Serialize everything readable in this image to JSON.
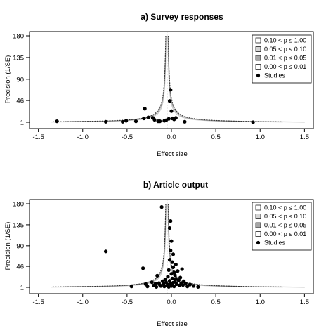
{
  "chart_data": [
    {
      "type": "scatter",
      "title": "a) Survey responses",
      "xlabel": "Effect size",
      "ylabel": "Precision (1/SE)",
      "xlim": [
        -1.6,
        1.6
      ],
      "ylim": [
        1,
        180
      ],
      "xticks": [
        "-1.5",
        "-1.0",
        "-0.5",
        "0.0",
        "0.5",
        "1.0",
        "1.5"
      ],
      "xtick_values": [
        -1.5,
        -1.0,
        -0.5,
        0.0,
        0.5,
        1.0,
        1.5
      ],
      "yticks": [
        "1",
        "46",
        "90",
        "135",
        "180"
      ],
      "ytick_values": [
        1,
        46,
        90,
        135,
        180
      ],
      "funnel_center": -0.05,
      "legend": {
        "position": "top-right",
        "entries": [
          "0.10 < p ≤ 1.00",
          "0.05 < p ≤ 0.10",
          "0.01 < p ≤ 0.05",
          "0.00 < p ≤ 0.01",
          "Studies"
        ]
      },
      "points": [
        {
          "x": -1.29,
          "y": 3
        },
        {
          "x": -0.74,
          "y": 2
        },
        {
          "x": -0.55,
          "y": 2
        },
        {
          "x": -0.51,
          "y": 4
        },
        {
          "x": -0.4,
          "y": 3
        },
        {
          "x": -0.31,
          "y": 9
        },
        {
          "x": -0.3,
          "y": 29
        },
        {
          "x": -0.26,
          "y": 11
        },
        {
          "x": -0.21,
          "y": 10
        },
        {
          "x": -0.19,
          "y": 6
        },
        {
          "x": -0.15,
          "y": 3
        },
        {
          "x": -0.13,
          "y": 3
        },
        {
          "x": -0.08,
          "y": 4
        },
        {
          "x": -0.06,
          "y": 5
        },
        {
          "x": -0.03,
          "y": 8
        },
        {
          "x": -0.02,
          "y": 45
        },
        {
          "x": -0.01,
          "y": 68
        },
        {
          "x": 0.0,
          "y": 24
        },
        {
          "x": 0.01,
          "y": 9
        },
        {
          "x": 0.03,
          "y": 7
        },
        {
          "x": 0.05,
          "y": 10
        },
        {
          "x": 0.15,
          "y": 2
        },
        {
          "x": 0.92,
          "y": 1
        }
      ]
    },
    {
      "type": "scatter",
      "title": "b) Article output",
      "xlabel": "Effect size",
      "ylabel": "Precision (1/SE)",
      "xlim": [
        -1.6,
        1.6
      ],
      "ylim": [
        1,
        180
      ],
      "xticks": [
        "-1.5",
        "-1.0",
        "-0.5",
        "0.0",
        "0.5",
        "1.0",
        "1.5"
      ],
      "xtick_values": [
        -1.5,
        -1.0,
        -0.5,
        0.0,
        0.5,
        1.0,
        1.5
      ],
      "yticks": [
        "1",
        "46",
        "90",
        "135",
        "180"
      ],
      "ytick_values": [
        1,
        46,
        90,
        135,
        180
      ],
      "funnel_center": -0.05,
      "legend": {
        "position": "top-right",
        "entries": [
          "0.10 < p ≤ 1.00",
          "0.05 < p ≤ 0.10",
          "0.01 < p ≤ 0.05",
          "0.00 < p ≤ 0.01",
          "Studies"
        ]
      },
      "points": [
        {
          "x": -0.74,
          "y": 78
        },
        {
          "x": -0.45,
          "y": 3
        },
        {
          "x": -0.32,
          "y": 42
        },
        {
          "x": -0.2,
          "y": 5
        },
        {
          "x": -0.18,
          "y": 9
        },
        {
          "x": -0.17,
          "y": 2
        },
        {
          "x": -0.14,
          "y": 10
        },
        {
          "x": -0.13,
          "y": 6
        },
        {
          "x": -0.12,
          "y": 4
        },
        {
          "x": -0.11,
          "y": 173
        },
        {
          "x": -0.1,
          "y": 14
        },
        {
          "x": -0.09,
          "y": 8
        },
        {
          "x": -0.08,
          "y": 3
        },
        {
          "x": -0.07,
          "y": 18
        },
        {
          "x": -0.06,
          "y": 12
        },
        {
          "x": -0.05,
          "y": 5
        },
        {
          "x": -0.04,
          "y": 24
        },
        {
          "x": -0.04,
          "y": 7
        },
        {
          "x": -0.03,
          "y": 38
        },
        {
          "x": -0.03,
          "y": 2
        },
        {
          "x": -0.02,
          "y": 60
        },
        {
          "x": -0.02,
          "y": 15
        },
        {
          "x": -0.01,
          "y": 80
        },
        {
          "x": -0.01,
          "y": 9
        },
        {
          "x": 0.0,
          "y": 100
        },
        {
          "x": 0.0,
          "y": 30
        },
        {
          "x": 0.0,
          "y": 4
        },
        {
          "x": 0.01,
          "y": 55
        },
        {
          "x": 0.01,
          "y": 20
        },
        {
          "x": 0.01,
          "y": 6
        },
        {
          "x": 0.02,
          "y": 72
        },
        {
          "x": 0.02,
          "y": 44
        },
        {
          "x": 0.02,
          "y": 11
        },
        {
          "x": 0.03,
          "y": 33
        },
        {
          "x": 0.03,
          "y": 3
        },
        {
          "x": 0.04,
          "y": 27
        },
        {
          "x": 0.04,
          "y": 13
        },
        {
          "x": 0.05,
          "y": 50
        },
        {
          "x": 0.05,
          "y": 19
        },
        {
          "x": 0.06,
          "y": 8
        },
        {
          "x": 0.07,
          "y": 36
        },
        {
          "x": 0.08,
          "y": 16
        },
        {
          "x": 0.09,
          "y": 5
        },
        {
          "x": 0.1,
          "y": 22
        },
        {
          "x": 0.11,
          "y": 10
        },
        {
          "x": 0.12,
          "y": 40
        },
        {
          "x": 0.13,
          "y": 6
        },
        {
          "x": 0.14,
          "y": 14
        },
        {
          "x": 0.16,
          "y": 9
        },
        {
          "x": 0.18,
          "y": 3
        },
        {
          "x": 0.21,
          "y": 7
        },
        {
          "x": 0.25,
          "y": 4
        },
        {
          "x": 0.3,
          "y": 2
        },
        {
          "x": -0.16,
          "y": 26
        },
        {
          "x": -0.22,
          "y": 12
        },
        {
          "x": -0.27,
          "y": 3
        },
        {
          "x": -0.29,
          "y": 8
        },
        {
          "x": -0.02,
          "y": 128
        },
        {
          "x": -0.01,
          "y": 143
        }
      ]
    }
  ]
}
